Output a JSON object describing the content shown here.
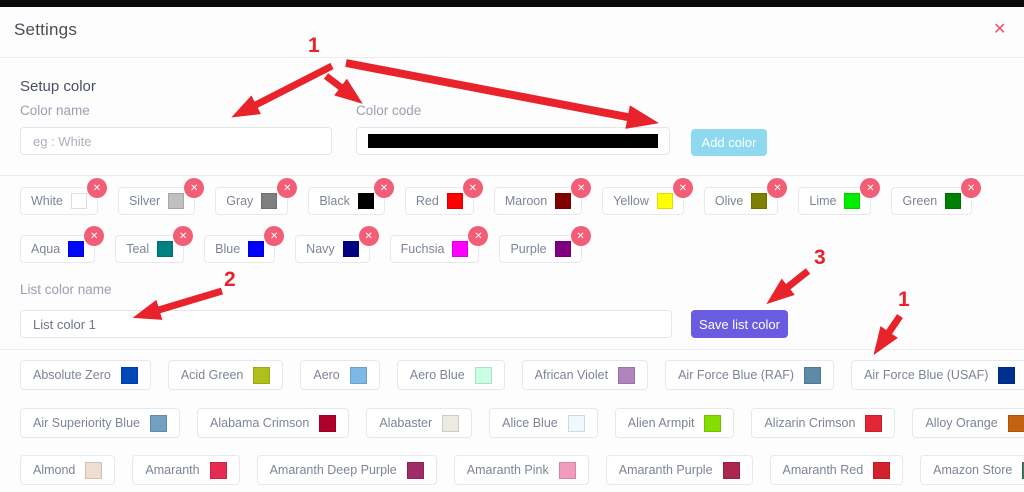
{
  "window": {
    "title": "Settings",
    "close_icon": "✕"
  },
  "setup": {
    "heading": "Setup color",
    "color_name_label": "Color name",
    "color_name_placeholder": "eg : White",
    "color_code_label": "Color code",
    "color_code_value": "#000000",
    "add_button": "Add color",
    "add_button_color": "#8ed8f0"
  },
  "saved_colors": {
    "delete_icon": "✕",
    "badge_color": "#f15e76",
    "row1": [
      {
        "name": "White",
        "hex": "#ffffff"
      },
      {
        "name": "Silver",
        "hex": "#c0c0c0"
      },
      {
        "name": "Gray",
        "hex": "#808080"
      },
      {
        "name": "Black",
        "hex": "#000000"
      },
      {
        "name": "Red",
        "hex": "#ff0000"
      },
      {
        "name": "Maroon",
        "hex": "#800000"
      },
      {
        "name": "Yellow",
        "hex": "#ffff00"
      },
      {
        "name": "Olive",
        "hex": "#808000"
      },
      {
        "name": "Lime",
        "hex": "#00ee00"
      },
      {
        "name": "Green",
        "hex": "#008000"
      }
    ],
    "row2": [
      {
        "name": "Aqua",
        "hex": "#0008fa"
      },
      {
        "name": "Teal",
        "hex": "#008080"
      },
      {
        "name": "Blue",
        "hex": "#0000ff"
      },
      {
        "name": "Navy",
        "hex": "#000080"
      },
      {
        "name": "Fuchsia",
        "hex": "#ff00ff"
      },
      {
        "name": "Purple",
        "hex": "#800080"
      }
    ]
  },
  "list": {
    "label": "List color name",
    "value": "List color 1",
    "save_button": "Save list color",
    "save_button_color": "#695ce0"
  },
  "palette": {
    "row1": [
      {
        "name": "Absolute Zero",
        "hex": "#0048ba"
      },
      {
        "name": "Acid Green",
        "hex": "#b0bf1a"
      },
      {
        "name": "Aero",
        "hex": "#7cb9e8"
      },
      {
        "name": "Aero Blue",
        "hex": "#c9ffe5"
      },
      {
        "name": "African Violet",
        "hex": "#b284be"
      },
      {
        "name": "Air Force Blue (RAF)",
        "hex": "#5d8aa8"
      },
      {
        "name": "Air Force Blue (USAF)",
        "hex": "#00308f"
      }
    ],
    "row2": [
      {
        "name": "Air Superiority Blue",
        "hex": "#72a0c1"
      },
      {
        "name": "Alabama Crimson",
        "hex": "#af002a"
      },
      {
        "name": "Alabaster",
        "hex": "#edeae0"
      },
      {
        "name": "Alice Blue",
        "hex": "#f0f8ff"
      },
      {
        "name": "Alien Armpit",
        "hex": "#84de02"
      },
      {
        "name": "Alizarin Crimson",
        "hex": "#e32636"
      },
      {
        "name": "Alloy Orange",
        "hex": "#c46210"
      }
    ],
    "row3": [
      {
        "name": "Almond",
        "hex": "#efdecd"
      },
      {
        "name": "Amaranth",
        "hex": "#e52b50"
      },
      {
        "name": "Amaranth Deep Purple",
        "hex": "#9f2b68"
      },
      {
        "name": "Amaranth Pink",
        "hex": "#f19cbb"
      },
      {
        "name": "Amaranth Purple",
        "hex": "#ab274f"
      },
      {
        "name": "Amaranth Red",
        "hex": "#d3212d"
      },
      {
        "name": "Amazon Store",
        "hex": "#3b7a57"
      }
    ]
  },
  "annotations": {
    "labels": [
      "1",
      "2",
      "3",
      "1"
    ],
    "arrow_color": "#e8232b"
  }
}
